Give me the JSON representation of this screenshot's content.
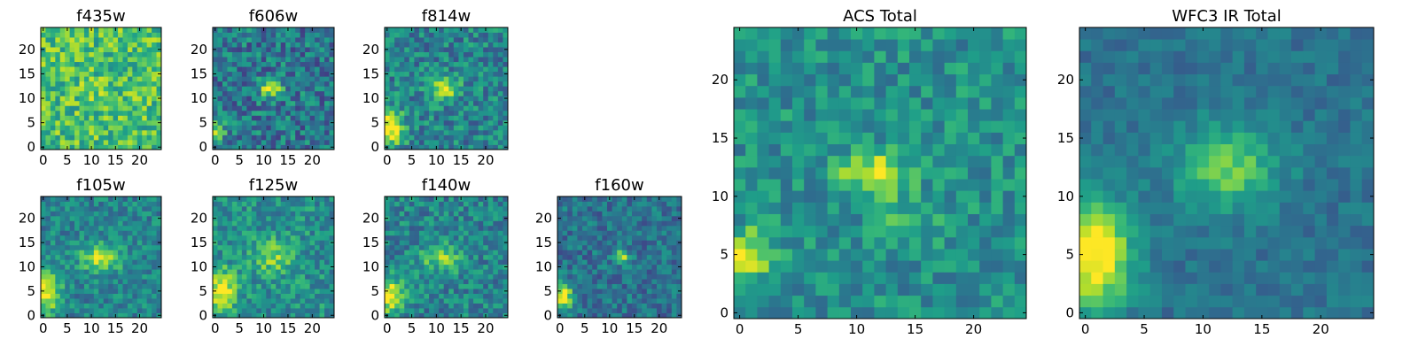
{
  "chart_data": {
    "type": "heatmap",
    "colormap": "viridis",
    "panels": [
      {
        "title": "f435w",
        "grid": 25,
        "xticks": [
          0,
          5,
          10,
          15,
          20
        ],
        "yticks": [
          0,
          5,
          10,
          15,
          20
        ],
        "base": 0.7,
        "noise": 0.22,
        "seed": 11,
        "blobs": [
          {
            "cx": 11,
            "cy": 12,
            "sx": 2.0,
            "sy": 1.5,
            "a": 0.08
          }
        ]
      },
      {
        "title": "f606w",
        "grid": 25,
        "xticks": [
          0,
          5,
          10,
          15,
          20
        ],
        "yticks": [
          0,
          5,
          10,
          15,
          20
        ],
        "base": 0.4,
        "noise": 0.22,
        "seed": 23,
        "blobs": [
          {
            "cx": 11.5,
            "cy": 12,
            "sx": 1.6,
            "sy": 1.3,
            "a": 0.6
          },
          {
            "cx": 0,
            "cy": 4,
            "sx": 1.5,
            "sy": 2.0,
            "a": 0.4
          }
        ]
      },
      {
        "title": "f814w",
        "grid": 25,
        "xticks": [
          0,
          5,
          10,
          15,
          20
        ],
        "yticks": [
          0,
          5,
          10,
          15,
          20
        ],
        "base": 0.45,
        "noise": 0.2,
        "seed": 37,
        "blobs": [
          {
            "cx": 11.5,
            "cy": 12,
            "sx": 2.0,
            "sy": 1.6,
            "a": 0.5
          },
          {
            "cx": 0.5,
            "cy": 4,
            "sx": 2.0,
            "sy": 2.5,
            "a": 0.6
          }
        ]
      },
      {
        "title": "f105w",
        "grid": 25,
        "xticks": [
          0,
          5,
          10,
          15,
          20
        ],
        "yticks": [
          0,
          5,
          10,
          15,
          20
        ],
        "base": 0.45,
        "noise": 0.16,
        "seed": 41,
        "blobs": [
          {
            "cx": 12,
            "cy": 12,
            "sx": 3.0,
            "sy": 2.0,
            "a": 0.45
          },
          {
            "cx": 0.5,
            "cy": 5,
            "sx": 2.0,
            "sy": 3.0,
            "a": 0.6
          }
        ]
      },
      {
        "title": "f125w",
        "grid": 25,
        "xticks": [
          0,
          5,
          10,
          15,
          20
        ],
        "yticks": [
          0,
          5,
          10,
          15,
          20
        ],
        "base": 0.5,
        "noise": 0.18,
        "seed": 53,
        "blobs": [
          {
            "cx": 1.5,
            "cy": 5,
            "sx": 2.0,
            "sy": 3.0,
            "a": 0.5
          },
          {
            "cx": 12,
            "cy": 12,
            "sx": 3.0,
            "sy": 2.5,
            "a": 0.3
          }
        ]
      },
      {
        "title": "f140w",
        "grid": 25,
        "xticks": [
          0,
          5,
          10,
          15,
          20
        ],
        "yticks": [
          0,
          5,
          10,
          15,
          20
        ],
        "base": 0.45,
        "noise": 0.18,
        "seed": 67,
        "blobs": [
          {
            "cx": 11,
            "cy": 12,
            "sx": 3.0,
            "sy": 2.0,
            "a": 0.35
          },
          {
            "cx": 0.5,
            "cy": 4,
            "sx": 2.0,
            "sy": 2.5,
            "a": 0.6
          }
        ]
      },
      {
        "title": "f160w",
        "grid": 25,
        "xticks": [
          0,
          5,
          10,
          15,
          20
        ],
        "yticks": [
          0,
          5,
          10,
          15,
          20
        ],
        "base": 0.38,
        "noise": 0.16,
        "seed": 79,
        "blobs": [
          {
            "cx": 12.5,
            "cy": 12,
            "sx": 1.2,
            "sy": 1.0,
            "a": 0.45
          },
          {
            "cx": 0.5,
            "cy": 4,
            "sx": 1.5,
            "sy": 2.0,
            "a": 0.65
          }
        ]
      },
      {
        "title": "ACS Total",
        "grid": 25,
        "xticks": [
          0,
          5,
          10,
          15,
          20
        ],
        "yticks": [
          0,
          5,
          10,
          15,
          20
        ],
        "base": 0.5,
        "noise": 0.16,
        "seed": 91,
        "blobs": [
          {
            "cx": 11.5,
            "cy": 12,
            "sx": 2.0,
            "sy": 1.2,
            "a": 0.5
          },
          {
            "cx": 0.5,
            "cy": 5,
            "sx": 1.5,
            "sy": 1.5,
            "a": 0.45
          },
          {
            "cx": 14,
            "cy": 8,
            "sx": 2.0,
            "sy": 1.5,
            "a": 0.15
          }
        ]
      },
      {
        "title": "WFC3 IR Total",
        "grid": 25,
        "xticks": [
          0,
          5,
          10,
          15,
          20
        ],
        "yticks": [
          0,
          5,
          10,
          15,
          20
        ],
        "base": 0.38,
        "noise": 0.09,
        "seed": 103,
        "blobs": [
          {
            "cx": 12,
            "cy": 12.5,
            "sx": 3.0,
            "sy": 2.5,
            "a": 0.4
          },
          {
            "cx": 0.8,
            "cy": 5,
            "sx": 2.2,
            "sy": 3.2,
            "a": 0.7
          }
        ]
      }
    ]
  }
}
